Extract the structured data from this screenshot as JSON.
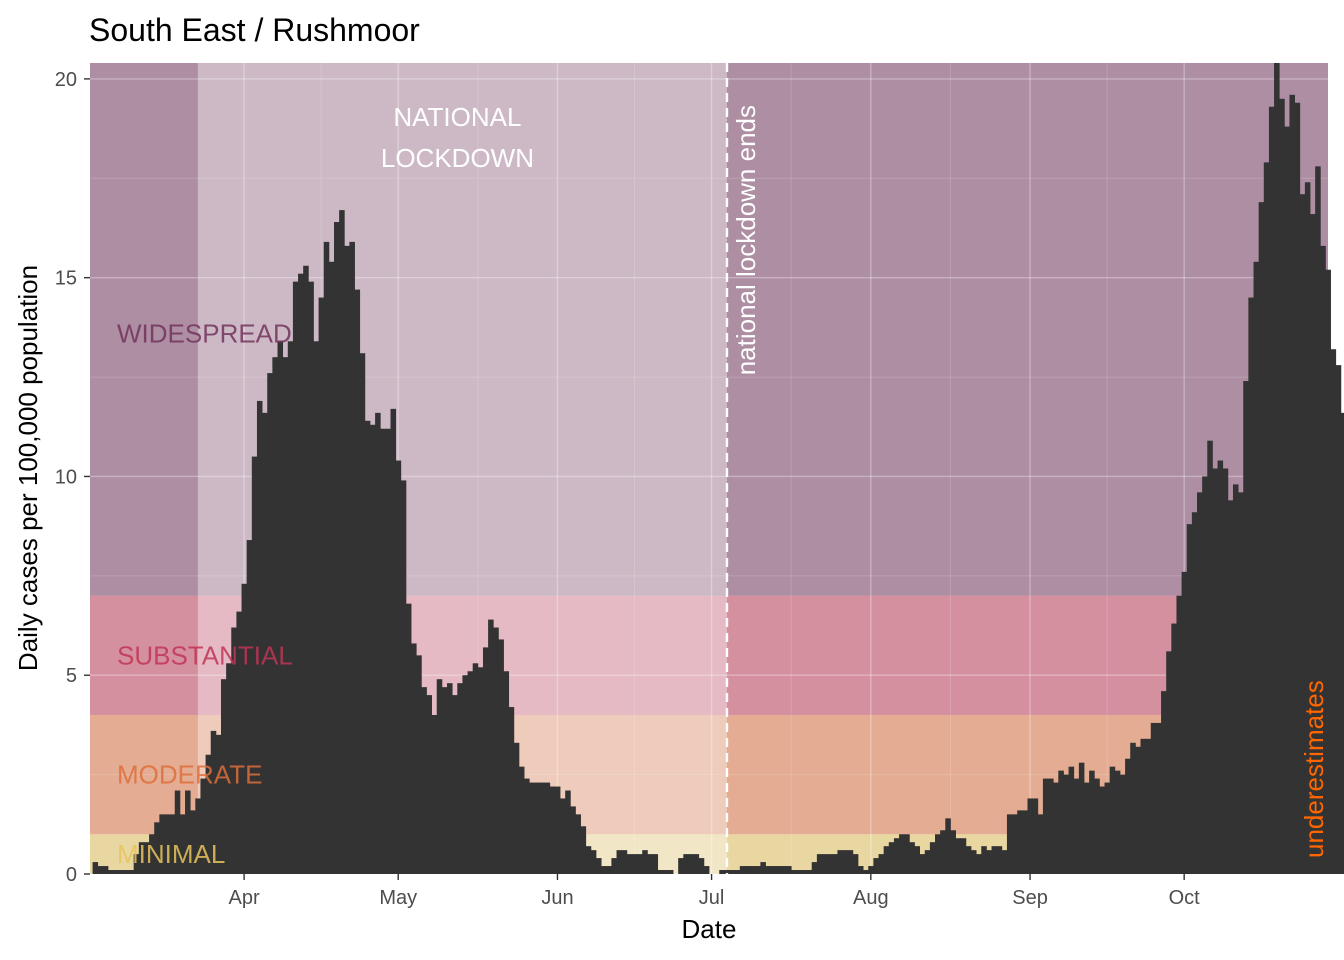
{
  "chart_data": {
    "type": "bar",
    "title": "South East / Rushmoor",
    "xlabel": "Date",
    "ylabel": "Daily cases per 100,000 population",
    "ylim": [
      0,
      20.4
    ],
    "yticks": [
      0,
      5,
      10,
      15,
      20
    ],
    "xlim": [
      "2020-03-02",
      "2020-10-29"
    ],
    "xticks": [
      {
        "date": "2020-04-01",
        "label": "Apr"
      },
      {
        "date": "2020-05-01",
        "label": "May"
      },
      {
        "date": "2020-06-01",
        "label": "Jun"
      },
      {
        "date": "2020-07-01",
        "label": "Jul"
      },
      {
        "date": "2020-08-01",
        "label": "Aug"
      },
      {
        "date": "2020-09-01",
        "label": "Sep"
      },
      {
        "date": "2020-10-01",
        "label": "Oct"
      }
    ],
    "bar_color": "#333333",
    "start_date": "2020-03-03",
    "values": [
      0.3,
      0.2,
      0.2,
      0.1,
      0.1,
      0.1,
      0.1,
      0.1,
      0.5,
      0.8,
      0.8,
      1.0,
      1.3,
      1.5,
      1.5,
      1.5,
      2.1,
      1.5,
      2.1,
      1.6,
      1.9,
      2.4,
      3.0,
      3.6,
      3.5,
      4.9,
      5.3,
      6.2,
      6.6,
      7.3,
      8.4,
      10.5,
      11.9,
      11.6,
      12.6,
      13.0,
      13.4,
      13.0,
      13.4,
      14.9,
      15.1,
      15.3,
      14.9,
      13.4,
      14.5,
      15.9,
      15.4,
      16.4,
      16.7,
      15.8,
      15.9,
      14.7,
      13.1,
      11.4,
      11.3,
      11.6,
      11.2,
      11.2,
      11.7,
      10.4,
      9.9,
      6.8,
      5.8,
      5.5,
      4.7,
      4.5,
      4.0,
      4.9,
      4.7,
      4.8,
      4.5,
      4.8,
      5.0,
      5.1,
      5.3,
      5.2,
      5.7,
      6.4,
      6.2,
      5.9,
      5.1,
      4.2,
      3.3,
      2.7,
      2.4,
      2.3,
      2.3,
      2.3,
      2.3,
      2.2,
      2.2,
      1.9,
      2.1,
      1.7,
      1.5,
      1.2,
      0.7,
      0.6,
      0.4,
      0.2,
      0.2,
      0.4,
      0.6,
      0.6,
      0.5,
      0.5,
      0.5,
      0.6,
      0.5,
      0.5,
      0.1,
      0.1,
      0.1,
      0.0,
      0.4,
      0.5,
      0.5,
      0.5,
      0.4,
      0.2,
      0.0,
      0.0,
      0.1,
      0.1,
      0.1,
      0.1,
      0.2,
      0.2,
      0.2,
      0.2,
      0.3,
      0.2,
      0.2,
      0.2,
      0.2,
      0.2,
      0.1,
      0.1,
      0.1,
      0.1,
      0.3,
      0.5,
      0.5,
      0.5,
      0.5,
      0.6,
      0.6,
      0.6,
      0.5,
      0.2,
      0.1,
      0.2,
      0.4,
      0.5,
      0.7,
      0.8,
      0.9,
      1.0,
      1.0,
      0.8,
      0.7,
      0.5,
      0.6,
      0.8,
      1.0,
      1.1,
      1.4,
      1.1,
      0.9,
      0.9,
      0.7,
      0.6,
      0.5,
      0.7,
      0.6,
      0.7,
      0.7,
      0.6,
      1.5,
      1.5,
      1.6,
      1.6,
      1.9,
      1.9,
      1.5,
      2.4,
      2.4,
      2.3,
      2.6,
      2.5,
      2.7,
      2.4,
      2.8,
      2.3,
      2.6,
      2.4,
      2.2,
      2.3,
      2.7,
      2.6,
      2.5,
      2.9,
      3.3,
      3.2,
      3.4,
      3.4,
      3.8,
      3.8,
      4.6,
      5.6,
      6.3,
      7.0,
      7.6,
      8.8,
      9.1,
      9.6,
      10.0,
      10.9,
      10.2,
      10.4,
      10.2,
      9.4,
      9.8,
      9.6,
      12.4,
      14.5,
      15.4,
      16.9,
      17.9,
      19.3,
      20.5,
      19.5,
      18.8,
      19.6,
      19.4,
      17.1,
      17.4,
      16.6,
      17.8,
      15.8,
      15.2,
      13.2,
      12.8,
      11.6,
      11.6,
      13.6,
      11.7
    ],
    "bands": [
      {
        "label": "WIDESPREAD",
        "from": 7,
        "to": 20.4,
        "color": "#72325c"
      },
      {
        "label": "SUBSTANTIAL",
        "from": 4,
        "to": 7,
        "color": "#c03555"
      },
      {
        "label": "MODERATE",
        "from": 1,
        "to": 4,
        "color": "#dd6e3a"
      },
      {
        "label": "MINIMAL",
        "from": 0,
        "to": 1,
        "color": "#e7c35a"
      }
    ],
    "lockdown": {
      "label_line1": "NATIONAL",
      "label_line2": "LOCKDOWN",
      "from": "2020-03-23",
      "to": "2020-07-04"
    },
    "lockdown_end": {
      "date": "2020-07-04",
      "label": "national lockdown ends"
    },
    "underestimates": {
      "label": "underestimates",
      "color": "#ff6600",
      "before": "2020-04-01"
    }
  }
}
